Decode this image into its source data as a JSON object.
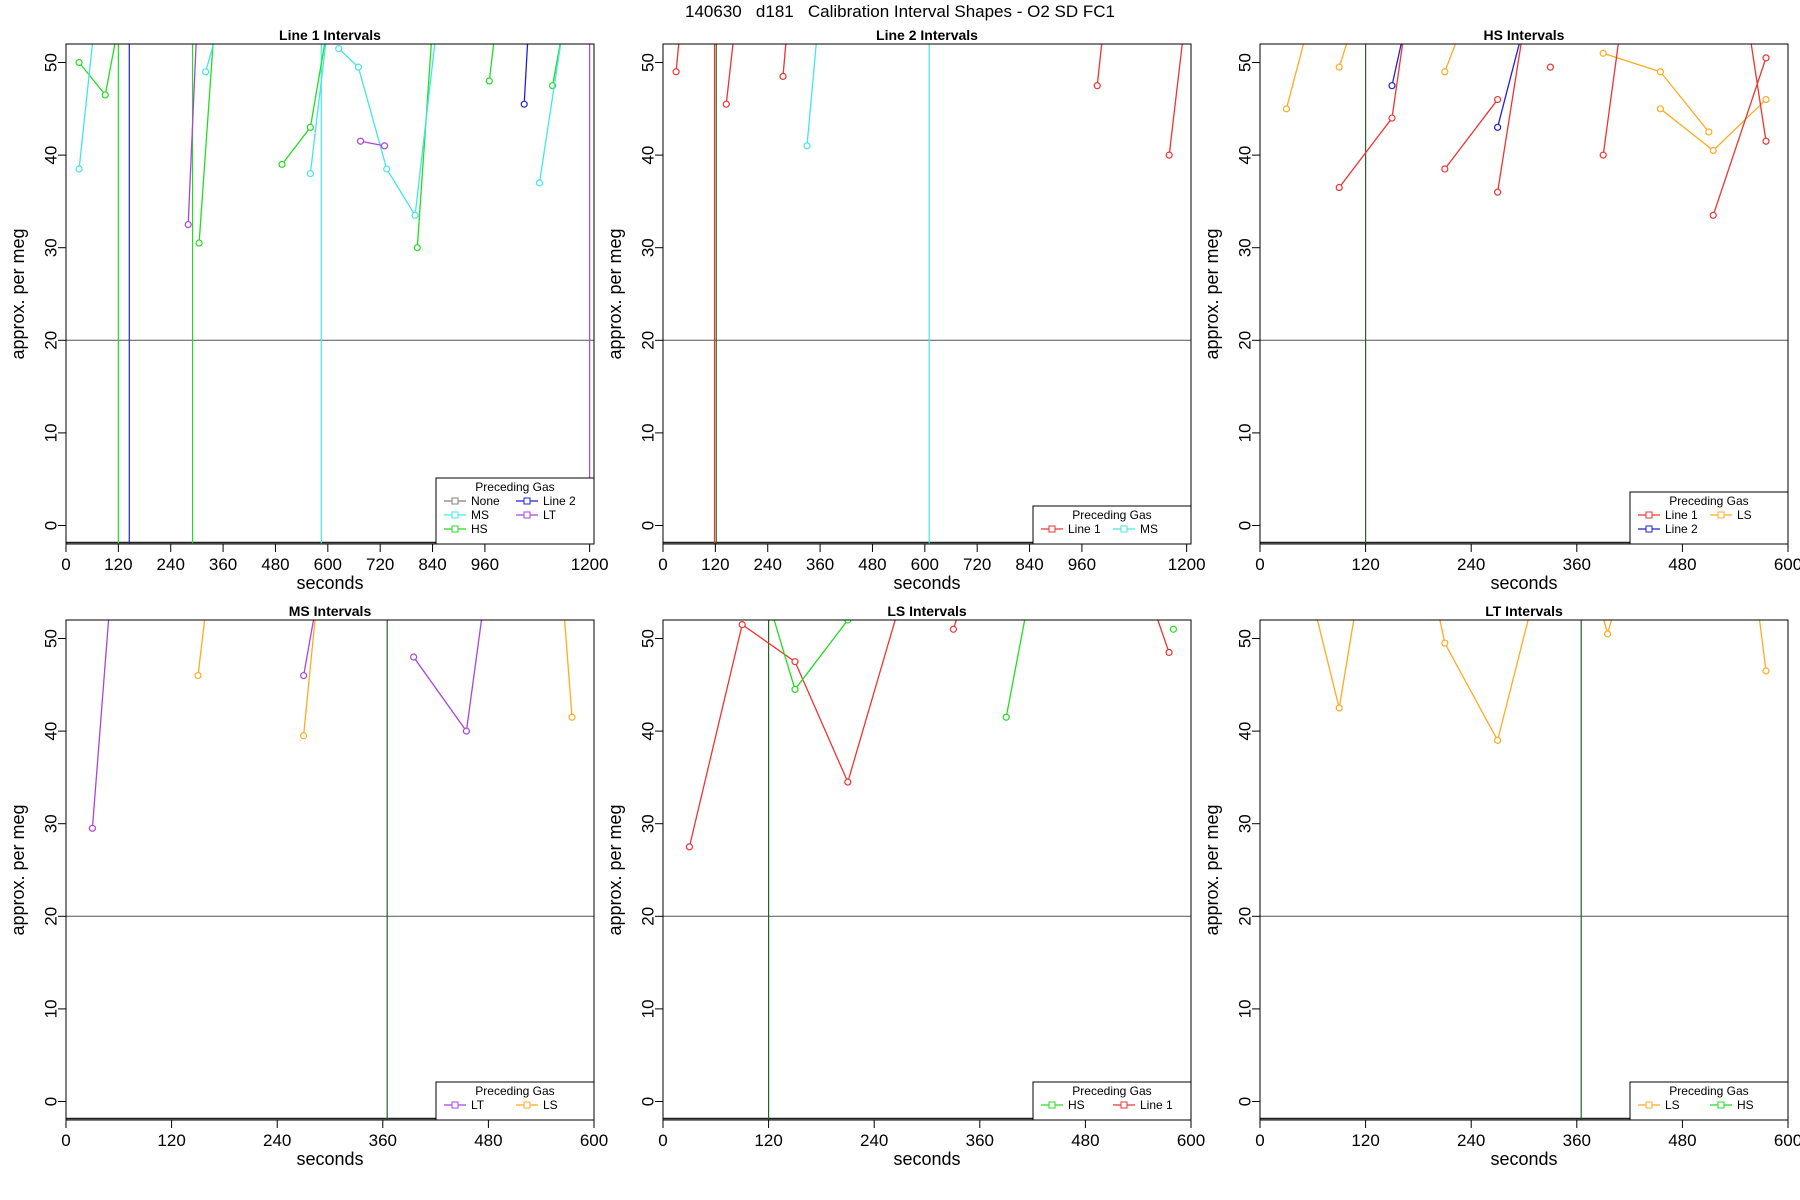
{
  "title": "140630   d181   Calibration Interval Shapes - O2 SD FC1",
  "colors": {
    "None": "#808080",
    "MS": "#44e6e6",
    "HS": "#22dd22",
    "Line 2": "#2222cc",
    "LT": "#aa44dd",
    "Line 1": "#ee3333",
    "LS": "#ffaa22",
    "hline": "#555555",
    "vline_dark": "#226622"
  },
  "chart_data": [
    {
      "type": "line",
      "title": "Line 1 Intervals",
      "xlabel": "seconds",
      "ylabel": "approx. per meg",
      "xlim": [
        0,
        1210
      ],
      "ylim": [
        -2,
        52
      ],
      "xticks": [
        0,
        120,
        240,
        360,
        480,
        600,
        720,
        840,
        960,
        1200
      ],
      "yticks": [
        0,
        10,
        20,
        30,
        40,
        50
      ],
      "hline": 20,
      "vlines": [
        {
          "x": 120,
          "color": "HS"
        },
        {
          "x": 145,
          "color": "Line 2"
        },
        {
          "x": 290,
          "color": "HS"
        },
        {
          "x": 585,
          "color": "MS"
        },
        {
          "x": 1200,
          "color": "LT"
        }
      ],
      "legend": {
        "title": "Preceding Gas",
        "position": "bottom-right",
        "ncol": 2,
        "entries": [
          "None",
          "MS",
          "HS",
          "Line 2",
          "LT"
        ]
      },
      "series": [
        {
          "name": "HS",
          "segments": [
            [
              [
                30,
                50
              ],
              [
                90,
                46.5
              ],
              [
                120,
                54
              ]
            ],
            [
              [
                305,
                30.5
              ],
              [
                340,
                54
              ]
            ],
            [
              [
                495,
                39
              ],
              [
                560,
                43
              ],
              [
                600,
                54
              ]
            ],
            [
              [
                805,
                30
              ],
              [
                840,
                54
              ]
            ],
            [
              [
                970,
                48
              ],
              [
                985,
                54
              ]
            ],
            [
              [
                1115,
                47.5
              ],
              [
                1140,
                54
              ]
            ]
          ]
        },
        {
          "name": "MS",
          "segments": [
            [
              [
                30,
                38.5
              ],
              [
                65,
                54
              ]
            ],
            [
              [
                320,
                49
              ],
              [
                350,
                54
              ]
            ],
            [
              [
                560,
                38
              ],
              [
                600,
                54
              ]
            ],
            [
              [
                625,
                51.5
              ],
              [
                670,
                49.5
              ],
              [
                735,
                38.5
              ],
              [
                800,
                33.5
              ],
              [
                850,
                54
              ]
            ],
            [
              [
                1085,
                37
              ],
              [
                1140,
                54
              ]
            ]
          ]
        },
        {
          "name": "LT",
          "segments": [
            [
              [
                280,
                32.5
              ],
              [
                300,
                54
              ]
            ],
            [
              [
                675,
                41.5
              ],
              [
                730,
                41
              ]
            ]
          ]
        },
        {
          "name": "Line 2",
          "segments": [
            [
              [
                1050,
                45.5
              ],
              [
                1060,
                54
              ]
            ]
          ]
        }
      ]
    },
    {
      "type": "line",
      "title": "Line 2 Intervals",
      "xlabel": "seconds",
      "ylabel": "approx. per meg",
      "xlim": [
        0,
        1210
      ],
      "ylim": [
        -2,
        52
      ],
      "xticks": [
        0,
        120,
        240,
        360,
        480,
        600,
        720,
        840,
        960,
        1200
      ],
      "yticks": [
        0,
        10,
        20,
        30,
        40,
        50
      ],
      "hline": 20,
      "vlines": [
        {
          "x": 118,
          "color": "Line 1"
        },
        {
          "x": 122,
          "color": "vline_dark"
        },
        {
          "x": 610,
          "color": "MS"
        }
      ],
      "legend": {
        "title": "Preceding Gas",
        "position": "bottom-right",
        "ncol": 2,
        "entries": [
          "Line 1",
          "MS"
        ]
      },
      "series": [
        {
          "name": "Line 1",
          "segments": [
            [
              [
                30,
                49
              ],
              [
                40,
                54
              ]
            ],
            [
              [
                145,
                45.5
              ],
              [
                165,
                54
              ]
            ],
            [
              [
                275,
                48.5
              ],
              [
                285,
                54
              ]
            ],
            [
              [
                995,
                47.5
              ],
              [
                1010,
                54
              ]
            ],
            [
              [
                1160,
                40
              ],
              [
                1195,
                54
              ]
            ]
          ]
        },
        {
          "name": "MS",
          "segments": [
            [
              [
                330,
                41
              ],
              [
                355,
                54
              ]
            ]
          ]
        }
      ]
    },
    {
      "type": "line",
      "title": "HS Intervals",
      "xlabel": "seconds",
      "ylabel": "approx. per meg",
      "xlim": [
        0,
        600
      ],
      "ylim": [
        -2,
        52
      ],
      "xticks": [
        0,
        120,
        240,
        360,
        480,
        600
      ],
      "yticks": [
        0,
        10,
        20,
        30,
        40,
        50
      ],
      "hline": 20,
      "vlines": [
        {
          "x": 120,
          "color": "vline_dark"
        }
      ],
      "legend": {
        "title": "Preceding Gas",
        "position": "bottom-right",
        "ncol": 2,
        "entries": [
          "Line 1",
          "Line 2",
          "LS"
        ]
      },
      "series": [
        {
          "name": "LS",
          "segments": [
            [
              [
                30,
                45
              ],
              [
                55,
                54
              ]
            ],
            [
              [
                90,
                49.5
              ],
              [
                105,
                54
              ]
            ],
            [
              [
                210,
                49
              ],
              [
                230,
                54
              ]
            ],
            [
              [
                390,
                51
              ],
              [
                455,
                49
              ],
              [
                510,
                42.5
              ]
            ],
            [
              [
                455,
                45
              ],
              [
                515,
                40.5
              ],
              [
                575,
                46
              ]
            ]
          ]
        },
        {
          "name": "Line 1",
          "segments": [
            [
              [
                90,
                36.5
              ],
              [
                150,
                44
              ],
              [
                165,
                54
              ]
            ],
            [
              [
                210,
                38.5
              ],
              [
                270,
                46
              ]
            ],
            [
              [
                270,
                36
              ],
              [
                300,
                54
              ]
            ],
            [
              [
                330,
                49.5
              ]
            ],
            [
              [
                390,
                40
              ],
              [
                410,
                54
              ]
            ],
            [
              [
                515,
                33.5
              ],
              [
                575,
                50.5
              ]
            ],
            [
              [
                575,
                41.5
              ],
              [
                555,
                54
              ]
            ]
          ]
        },
        {
          "name": "Line 2",
          "segments": [
            [
              [
                150,
                47.5
              ],
              [
                165,
                54
              ]
            ],
            [
              [
                270,
                43
              ],
              [
                300,
                54
              ]
            ]
          ]
        }
      ]
    },
    {
      "type": "line",
      "title": "MS Intervals",
      "xlabel": "seconds",
      "ylabel": "approx. per meg",
      "xlim": [
        0,
        600
      ],
      "ylim": [
        -2,
        52
      ],
      "xticks": [
        0,
        120,
        240,
        360,
        480,
        600
      ],
      "yticks": [
        0,
        10,
        20,
        30,
        40,
        50
      ],
      "hline": 20,
      "vlines": [
        {
          "x": 365,
          "color": "vline_dark"
        }
      ],
      "legend": {
        "title": "Preceding Gas",
        "position": "bottom-right",
        "ncol": 2,
        "entries": [
          "LT",
          "LS"
        ]
      },
      "series": [
        {
          "name": "LT",
          "segments": [
            [
              [
                30,
                29.5
              ],
              [
                50,
                54
              ]
            ],
            [
              [
                270,
                46
              ],
              [
                285,
                54
              ]
            ],
            [
              [
                395,
                48
              ],
              [
                455,
                40
              ],
              [
                475,
                54
              ]
            ]
          ]
        },
        {
          "name": "LS",
          "segments": [
            [
              [
                150,
                46
              ],
              [
                160,
                54
              ]
            ],
            [
              [
                270,
                39.5
              ],
              [
                285,
                54
              ]
            ],
            [
              [
                575,
                41.5
              ],
              [
                565,
                54
              ]
            ]
          ]
        }
      ]
    },
    {
      "type": "line",
      "title": "LS Intervals",
      "xlabel": "seconds",
      "ylabel": "approx. per meg",
      "xlim": [
        0,
        600
      ],
      "ylim": [
        -2,
        52
      ],
      "xticks": [
        0,
        120,
        240,
        360,
        480,
        600
      ],
      "yticks": [
        0,
        10,
        20,
        30,
        40,
        50
      ],
      "hline": 20,
      "vlines": [
        {
          "x": 120,
          "color": "vline_dark"
        }
      ],
      "legend": {
        "title": "Preceding Gas",
        "position": "bottom-right",
        "ncol": 2,
        "entries": [
          "HS",
          "Line 1"
        ]
      },
      "series": [
        {
          "name": "Line 1",
          "segments": [
            [
              [
                30,
                27.5
              ],
              [
                90,
                51.5
              ],
              [
                150,
                47.5
              ],
              [
                210,
                34.5
              ],
              [
                270,
                54
              ]
            ],
            [
              [
                330,
                51
              ],
              [
                340,
                54
              ]
            ],
            [
              [
                575,
                48.5
              ],
              [
                555,
                54
              ]
            ]
          ]
        },
        {
          "name": "HS",
          "segments": [
            [
              [
                120,
                54
              ],
              [
                150,
                44.5
              ],
              [
                210,
                52
              ],
              [
                220,
                54
              ]
            ],
            [
              [
                390,
                41.5
              ],
              [
                415,
                54
              ]
            ],
            [
              [
                580,
                51
              ]
            ]
          ]
        }
      ]
    },
    {
      "type": "line",
      "title": "LT Intervals",
      "xlabel": "seconds",
      "ylabel": "approx. per meg",
      "xlim": [
        0,
        600
      ],
      "ylim": [
        -2,
        52
      ],
      "xticks": [
        0,
        120,
        240,
        360,
        480,
        600
      ],
      "yticks": [
        0,
        10,
        20,
        30,
        40,
        50
      ],
      "hline": 20,
      "vlines": [
        {
          "x": 365,
          "color": "vline_dark"
        }
      ],
      "legend": {
        "title": "Preceding Gas",
        "position": "bottom-right",
        "ncol": 2,
        "entries": [
          "LS",
          "HS"
        ]
      },
      "series": [
        {
          "name": "LS",
          "segments": [
            [
              [
                60,
                54
              ],
              [
                90,
                42.5
              ],
              [
                110,
                54
              ]
            ],
            [
              [
                200,
                54
              ],
              [
                210,
                49.5
              ],
              [
                270,
                39
              ],
              [
                310,
                54
              ]
            ],
            [
              [
                385,
                54
              ],
              [
                395,
                50.5
              ],
              [
                405,
                54
              ]
            ],
            [
              [
                565,
                54
              ],
              [
                575,
                46.5
              ]
            ]
          ]
        }
      ]
    }
  ]
}
